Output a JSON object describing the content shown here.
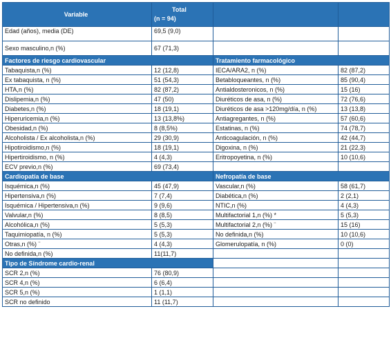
{
  "header": {
    "variable": "Variable",
    "total_line1": "Total",
    "total_line2": "(n = 94)"
  },
  "rows_top": [
    {
      "label": "Edad (años), media (DE)",
      "value": "69,5 (9,0)"
    },
    {
      "label": "Sexo masculino,n (%)",
      "value": "67 (71,3)"
    }
  ],
  "section1": {
    "left_title": "Factores de riesgo cardiovascular",
    "right_title": "Tratamiento farmacológico",
    "rows": [
      {
        "l": "Tabaquista,n (%)",
        "lv": "12 (12,8)",
        "r": "IECA/ARA2, n (%)",
        "rv": "82 (87,2)"
      },
      {
        "l": "Ex tabaquista, n (%)",
        "lv": "51 (54,3)",
        "r": "Betabloqueantes, n (%)",
        "rv": "85 (90,4)"
      },
      {
        "l": "HTA,n (%)",
        "lv": "82 (87,2)",
        "r": "Antialdosteronicos, n (%)",
        "rv": "15 (16)"
      },
      {
        "l": "Dislipemia,n (%)",
        "lv": "47 (50)",
        "r": "Diuréticos de asa, n (%)",
        "rv": "72 (76,6)"
      },
      {
        "l": "Diabetes,n (%)",
        "lv": "18 (19,1)",
        "r": "Diuréticos de asa >120mg/día, n (%)",
        "rv": "13 (13,8)"
      },
      {
        "l": "Hiperuricemia,n (%)",
        "lv": "13 (13,8%)",
        "r": "Antiagregantes, n (%)",
        "rv": "57 (60,6)"
      },
      {
        "l": "Obesidad,n (%)",
        "lv": "8 (8,5%)",
        "r": "Estatinas, n (%)",
        "rv": "74 (78,7)"
      },
      {
        "l": "Alcoholista / Ex alcoholista,n (%)",
        "lv": "29 (30,9)",
        "r": "Anticoagulación, n (%)",
        "rv": "42 (44,7)"
      },
      {
        "l": "Hipotiroidismo,n (%)",
        "lv": "18 (19,1)",
        "r": "Digoxina, n (%)",
        "rv": "21 (22,3)"
      },
      {
        "l": "Hipertiroidismo, n (%)",
        "lv": "4 (4,3)",
        "r": "Eritropoyetina, n (%)",
        "rv": "10 (10,6)"
      },
      {
        "l": "ECV previo,n (%)",
        "lv": "69 (73,4)",
        "r": "",
        "rv": ""
      }
    ]
  },
  "section2": {
    "left_title": "Cardiopatía de base",
    "right_title": "Nefropatía de base",
    "rows": [
      {
        "l": "Isquémica,n (%)",
        "lv": "45 (47,9)",
        "r": "Vascular,n (%)",
        "rv": "58 (61,7)"
      },
      {
        "l": "Hipertensiva,n (%)",
        "lv": "7 (7,4)",
        "r": "Diabética,n (%)",
        "rv": "2 (2,1)"
      },
      {
        "l": "Isquémica / Hipertensiva,n (%)",
        "lv": "9 (9,6)",
        "r": "NTIC,n (%)",
        "rv": "4 (4,3)"
      },
      {
        "l": "Valvular,n (%)",
        "lv": "8 (8,5)",
        "r": "Multifactorial 1,n (%) *",
        "rv": "5 (5,3)"
      },
      {
        "l": "Alcohólica,n (%)",
        "lv": "5 (5,3)",
        "r": "Multifactorial 2,n (%) ¨",
        "rv": "15 (16)"
      },
      {
        "l": "Taquimiopatía, n (%)",
        "lv": "5 (5,3)",
        "r": "No definida,n (%)",
        "rv": "10 (10,6)"
      },
      {
        "l": "Otras,n (%) ¨",
        "lv": "4 (4,3)",
        "r": "Glomerulopatía, n (%)",
        "rv": "0 (0)"
      },
      {
        "l": "No definida,n (%)",
        "lv": "11(11,7)",
        "r": "",
        "rv": ""
      }
    ]
  },
  "section3": {
    "left_title": "Tipo de Síndrome cardio-renal",
    "rows": [
      {
        "l": "SCR 2,n (%)",
        "lv": "76 (80,9)"
      },
      {
        "l": "SCR 4,n (%)",
        "lv": "6 (6,4)"
      },
      {
        "l": "SCR 5,n (%)",
        "lv": "1 (1,1)"
      },
      {
        "l": "SCR no definido",
        "lv": "11 (11,7)"
      }
    ]
  },
  "colors": {
    "header_bg": "#2b73b5",
    "border": "#1f5c99"
  }
}
